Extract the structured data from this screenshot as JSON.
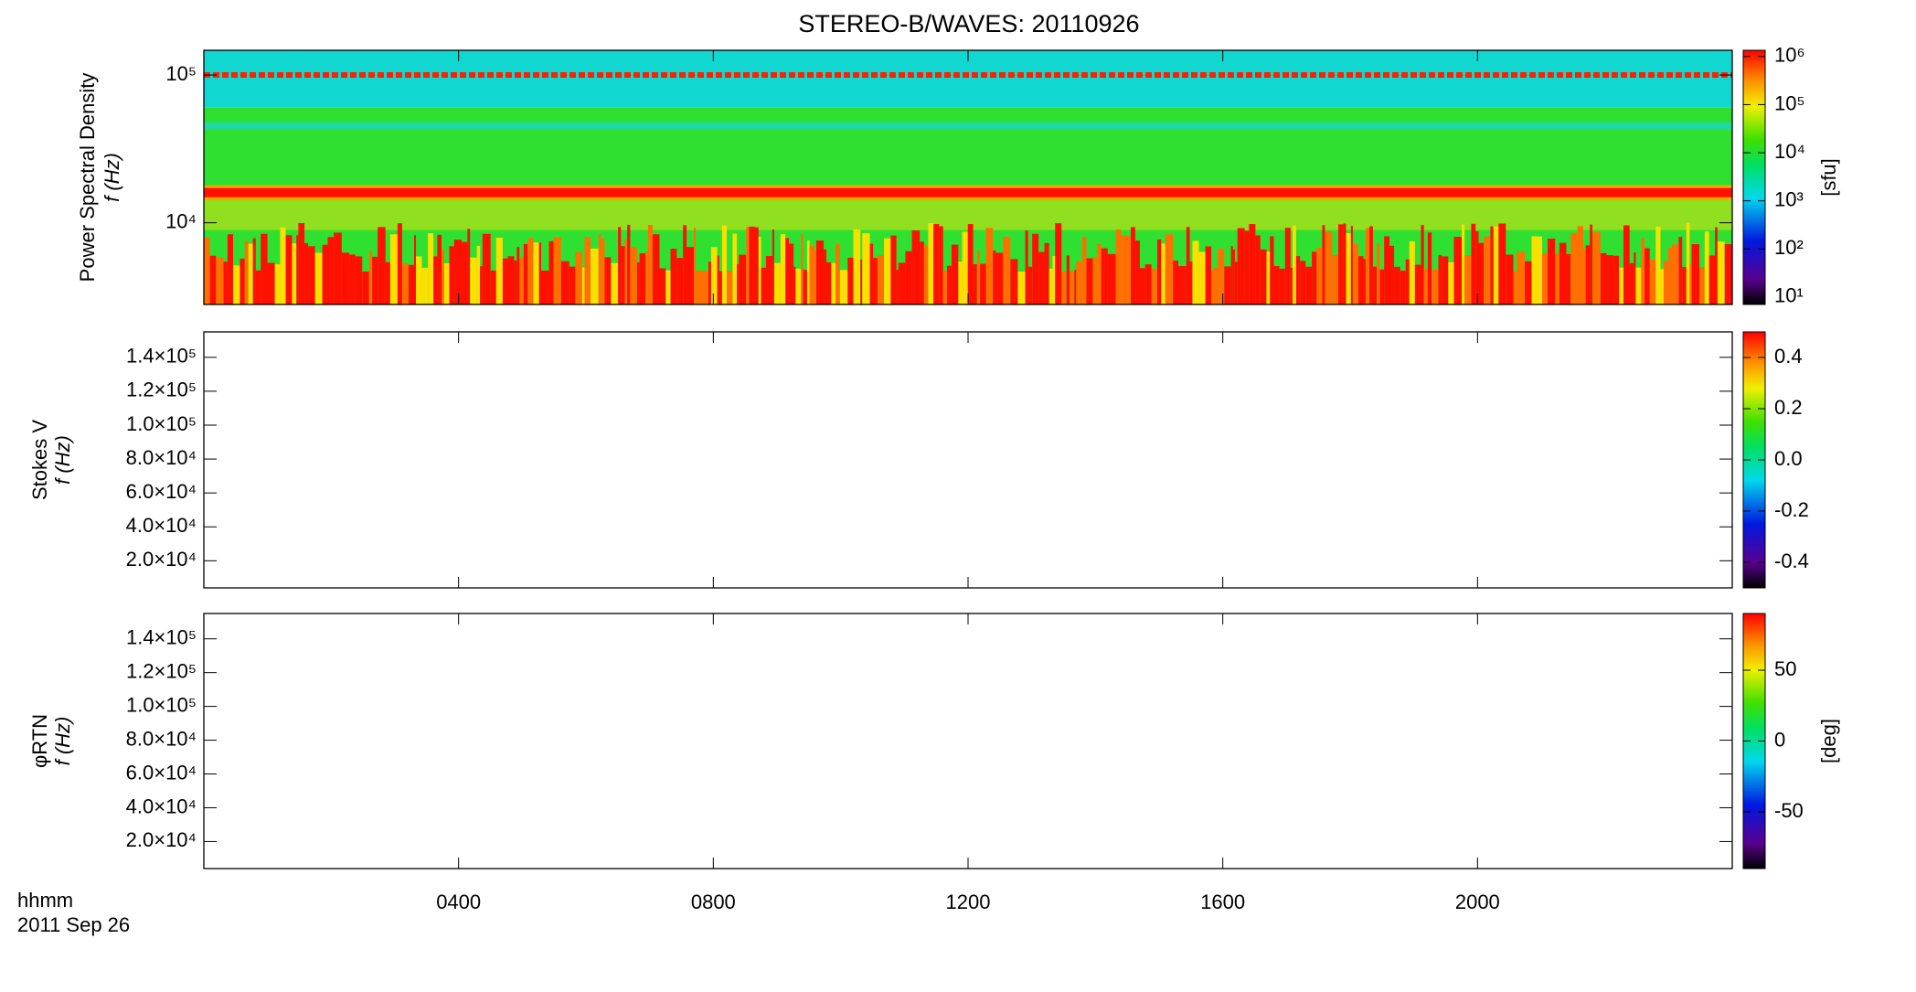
{
  "title": "STEREO-B/WAVES: 20110926",
  "chart_data": [
    {
      "type": "heatmap",
      "ylabel": [
        "Power Spectral Density",
        "f (Hz)"
      ],
      "ylog": true,
      "ylim": [
        2800,
        147000
      ],
      "yticks": [
        {
          "value": 10000,
          "label": "10⁴"
        },
        {
          "value": 100000,
          "label": "10⁵"
        }
      ],
      "zlog": true,
      "zlim": [
        7,
        1350000
      ],
      "zticks": [
        {
          "value": 10,
          "label": "10¹"
        },
        {
          "value": 100,
          "label": "10²"
        },
        {
          "value": 1000,
          "label": "10³"
        },
        {
          "value": 10000,
          "label": "10⁴"
        },
        {
          "value": 100000,
          "label": "10⁵"
        },
        {
          "value": 1000000,
          "label": "10⁶"
        }
      ],
      "zlabel": "[sfu]"
    },
    {
      "type": "heatmap",
      "ylabel": [
        "Stokes V",
        "f (Hz)"
      ],
      "ylog": false,
      "ylim": [
        4000,
        155000
      ],
      "yticks": [
        {
          "value": 20000,
          "label": "2.0×10⁴"
        },
        {
          "value": 40000,
          "label": "4.0×10⁴"
        },
        {
          "value": 60000,
          "label": "6.0×10⁴"
        },
        {
          "value": 80000,
          "label": "8.0×10⁴"
        },
        {
          "value": 100000,
          "label": "1.0×10⁵"
        },
        {
          "value": 120000,
          "label": "1.2×10⁵"
        },
        {
          "value": 140000,
          "label": "1.4×10⁵"
        }
      ],
      "zlog": false,
      "zlim": [
        -0.5,
        0.5
      ],
      "zticks": [
        -0.4,
        -0.2,
        {
          "value": 0,
          "label": "0.0"
        },
        0.2,
        0.4
      ]
    },
    {
      "type": "heatmap",
      "ylabel": [
        "φRTN",
        "f (Hz)"
      ],
      "ylog": false,
      "ylim": [
        4000,
        155000
      ],
      "yticks": [
        {
          "value": 20000,
          "label": "2.0×10⁴"
        },
        {
          "value": 40000,
          "label": "4.0×10⁴"
        },
        {
          "value": 60000,
          "label": "6.0×10⁴"
        },
        {
          "value": 80000,
          "label": "8.0×10⁴"
        },
        {
          "value": 100000,
          "label": "1.0×10⁵"
        },
        {
          "value": 120000,
          "label": "1.2×10⁵"
        },
        {
          "value": 140000,
          "label": "1.4×10⁵"
        }
      ],
      "zlog": false,
      "zlim": [
        -90,
        90
      ],
      "zticks": [
        -50,
        0,
        50
      ],
      "zlabel": "[deg]",
      "xlim": [
        0,
        24
      ],
      "xticks": [
        {
          "value": 4,
          "label": "0400"
        },
        {
          "value": 8,
          "label": "0800"
        },
        {
          "value": 12,
          "label": "1200"
        },
        {
          "value": 16,
          "label": "1600"
        },
        {
          "value": 20,
          "label": "2000"
        }
      ],
      "xlabel": "hhmm",
      "date": "2011 Sep 26"
    }
  ]
}
